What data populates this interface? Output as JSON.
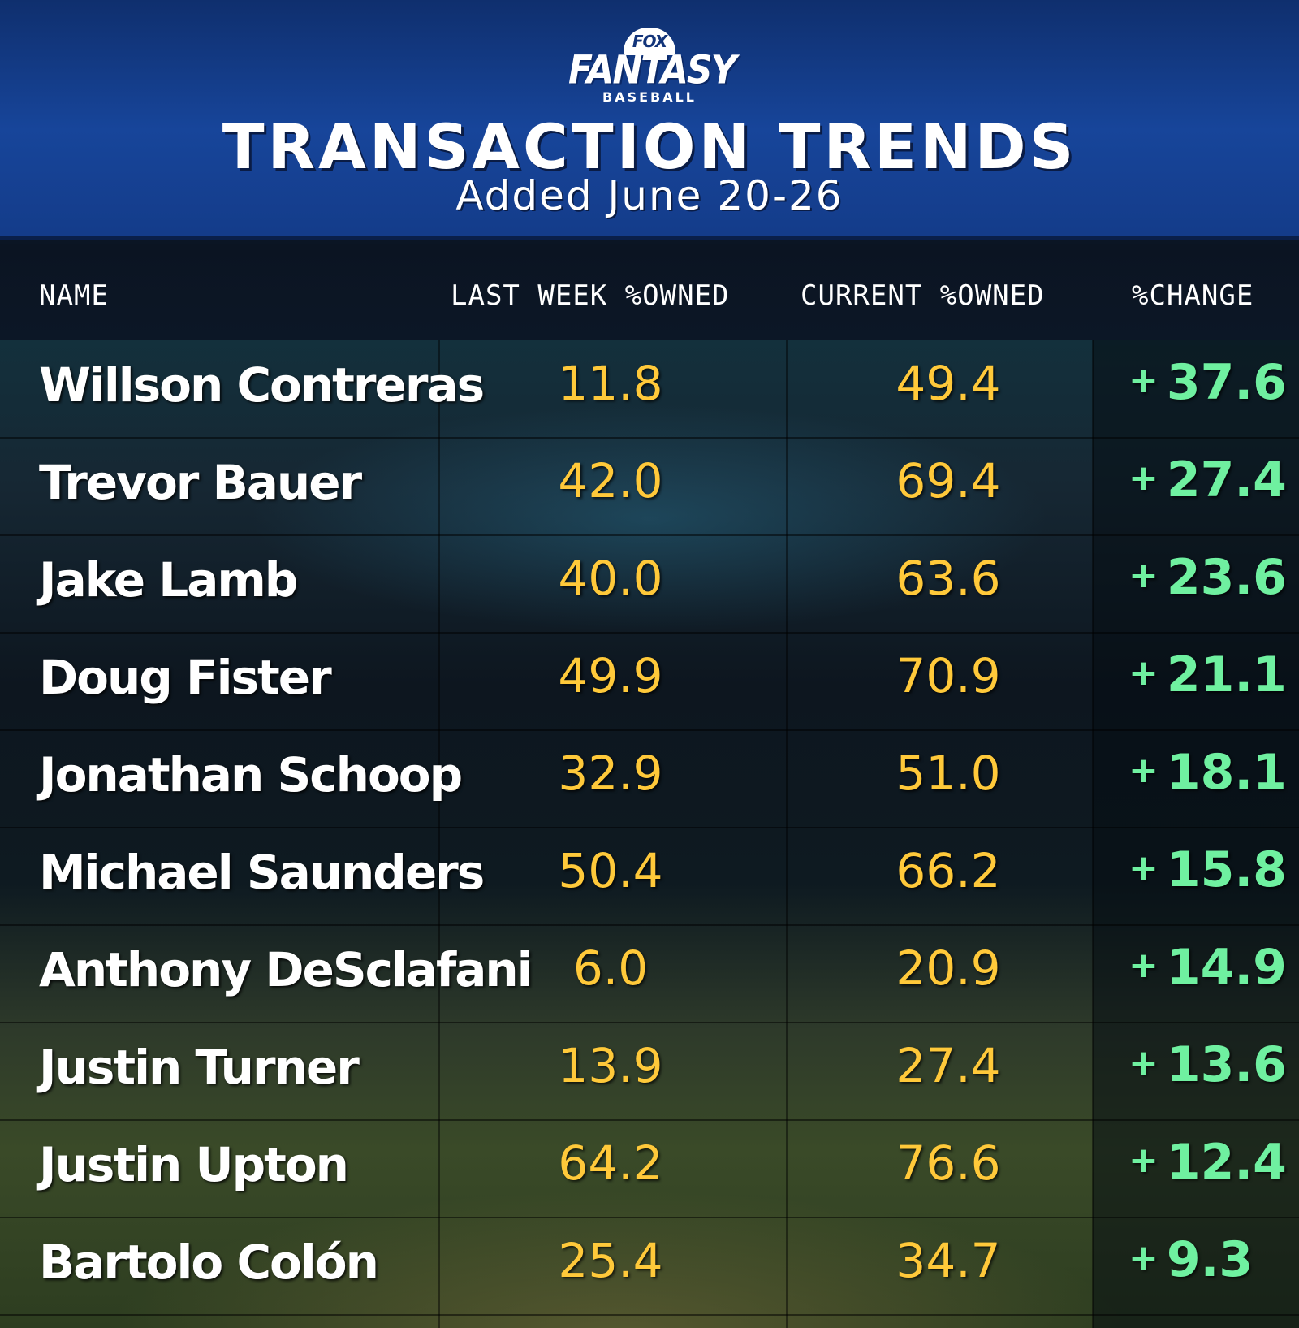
{
  "logo": {
    "fox": "FOX",
    "fantasy": "FANTASY",
    "baseball": "BASEBALL"
  },
  "title": "TRANSACTION TRENDS",
  "subtitle": "Added June 20-26",
  "columns": {
    "name": "NAME",
    "last_week": "LAST WEEK %OWNED",
    "current": "CURRENT %OWNED",
    "change": "%CHANGE"
  },
  "colors": {
    "header_blue": "#17459a",
    "value_yellow": "#ffc93a",
    "change_green": "#6ff0a0"
  },
  "rows": [
    {
      "name": "Willson Contreras",
      "last": "11.8",
      "current": "49.4",
      "sign": "+",
      "change": "37.6"
    },
    {
      "name": "Trevor Bauer",
      "last": "42.0",
      "current": "69.4",
      "sign": "+",
      "change": "27.4"
    },
    {
      "name": "Jake Lamb",
      "last": "40.0",
      "current": "63.6",
      "sign": "+",
      "change": "23.6"
    },
    {
      "name": "Doug Fister",
      "last": "49.9",
      "current": "70.9",
      "sign": "+",
      "change": "21.1"
    },
    {
      "name": "Jonathan Schoop",
      "last": "32.9",
      "current": "51.0",
      "sign": "+",
      "change": "18.1"
    },
    {
      "name": "Michael Saunders",
      "last": "50.4",
      "current": "66.2",
      "sign": "+",
      "change": "15.8"
    },
    {
      "name": "Anthony DeSclafani",
      "last": "6.0",
      "current": "20.9",
      "sign": "+",
      "change": "14.9"
    },
    {
      "name": "Justin Turner",
      "last": "13.9",
      "current": "27.4",
      "sign": "+",
      "change": "13.6"
    },
    {
      "name": "Justin Upton",
      "last": "64.2",
      "current": "76.6",
      "sign": "+",
      "change": "12.4"
    },
    {
      "name": "Bartolo Colón",
      "last": "25.4",
      "current": "34.7",
      "sign": "+",
      "change": "9.3"
    }
  ]
}
